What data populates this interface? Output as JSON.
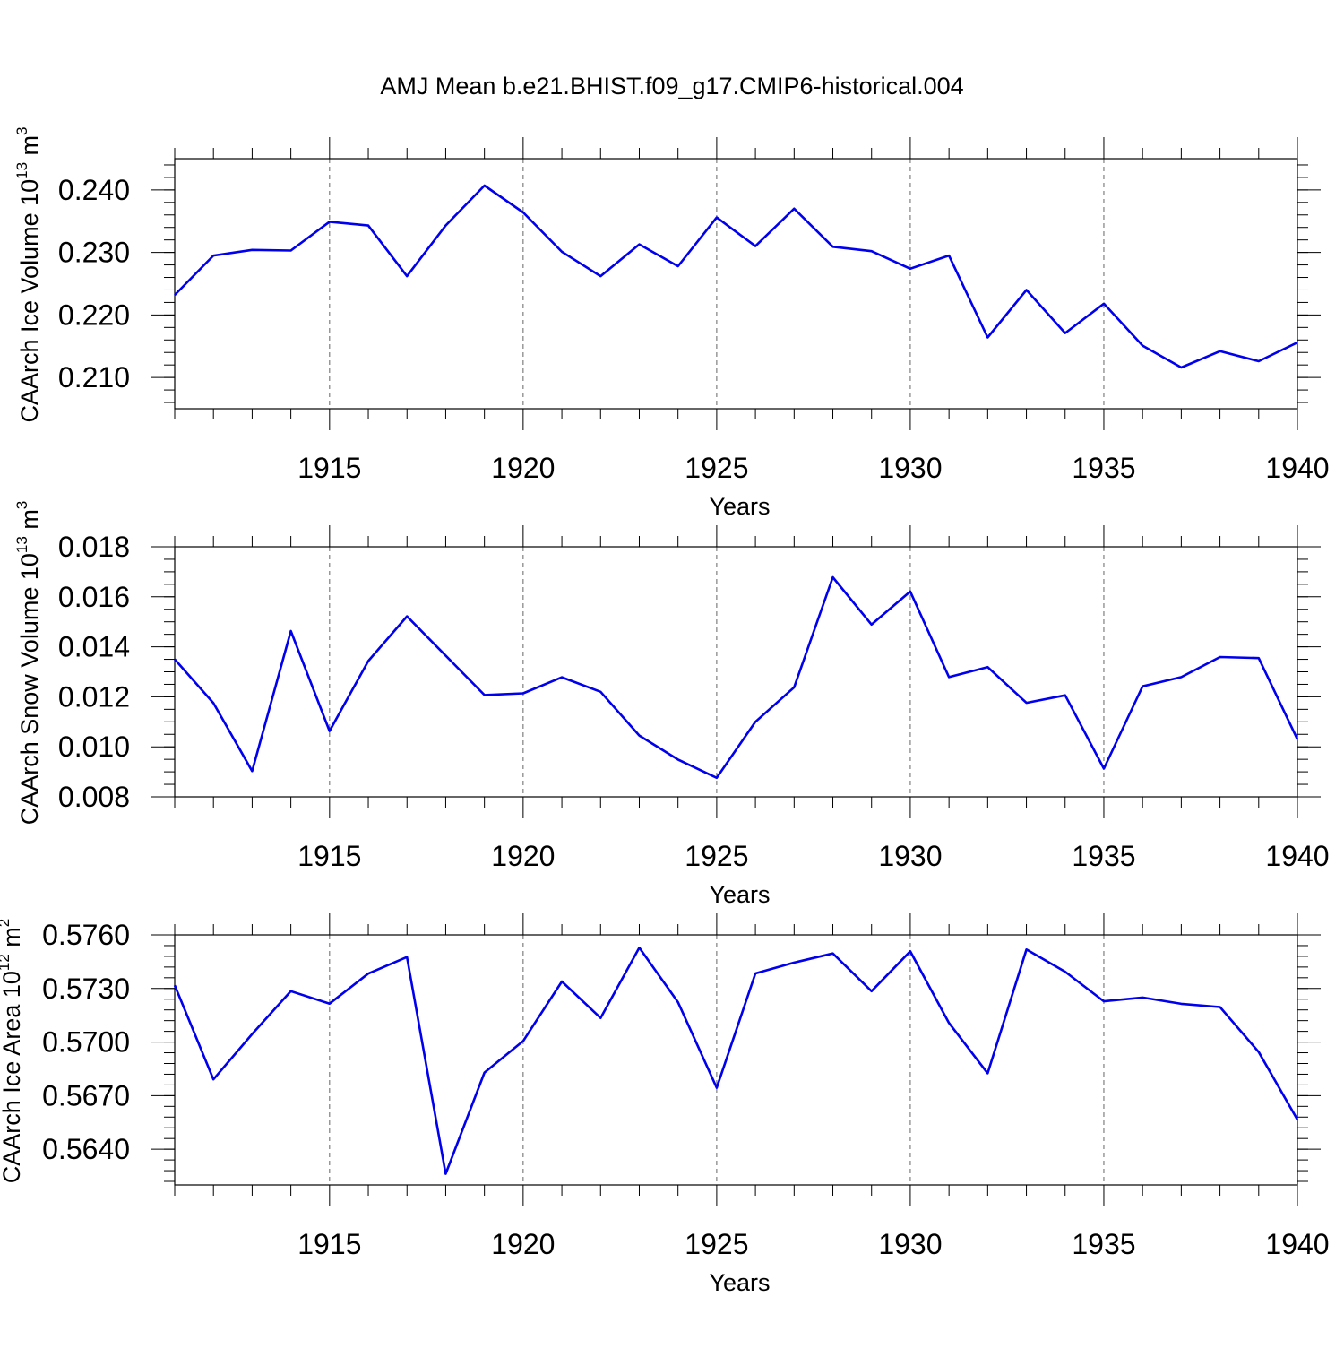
{
  "title": "AMJ Mean b.e21.BHIST.f09_g17.CMIP6-historical.004",
  "colors": {
    "line": "#0000ee",
    "axis": "#000000",
    "grid": "#666666"
  },
  "chart_data": [
    {
      "type": "line",
      "ylabel": {
        "text": "CAArch Ice Volume 10",
        "exp": "13",
        "unit": "m",
        "unit_exp": "3"
      },
      "xlabel": "Years",
      "xlim": [
        1911,
        1940
      ],
      "ylim": [
        0.205,
        0.245
      ],
      "x_ticks": [
        "1915",
        "1920",
        "1925",
        "1930",
        "1935",
        "1940"
      ],
      "x_tick_values": [
        1915,
        1920,
        1925,
        1930,
        1935,
        1940
      ],
      "y_ticks": [
        "0.210",
        "0.220",
        "0.230",
        "0.240"
      ],
      "y_tick_values": [
        0.21,
        0.22,
        0.23,
        0.24
      ],
      "y_minor_step": 0.002,
      "grid": "dashed vertical at major x ticks",
      "x": [
        1911,
        1912,
        1913,
        1914,
        1915,
        1916,
        1917,
        1918,
        1919,
        1920,
        1921,
        1922,
        1923,
        1924,
        1925,
        1926,
        1927,
        1928,
        1929,
        1930,
        1931,
        1932,
        1933,
        1934,
        1935,
        1936,
        1937,
        1938,
        1939,
        1940
      ],
      "values": [
        0.2232,
        0.2295,
        0.2304,
        0.2303,
        0.2349,
        0.2343,
        0.2262,
        0.2343,
        0.2407,
        0.2364,
        0.2301,
        0.2262,
        0.2313,
        0.2278,
        0.2356,
        0.231,
        0.237,
        0.2309,
        0.2302,
        0.2274,
        0.2295,
        0.2164,
        0.224,
        0.2171,
        0.2218,
        0.2151,
        0.2116,
        0.2142,
        0.2126,
        0.2156
      ]
    },
    {
      "type": "line",
      "ylabel": {
        "text": "CAArch Snow Volume 10",
        "exp": "13",
        "unit": "m",
        "unit_exp": "3"
      },
      "xlabel": "Years",
      "xlim": [
        1911,
        1940
      ],
      "ylim": [
        0.008,
        0.018
      ],
      "x_ticks": [
        "1915",
        "1920",
        "1925",
        "1930",
        "1935",
        "1940"
      ],
      "x_tick_values": [
        1915,
        1920,
        1925,
        1930,
        1935,
        1940
      ],
      "y_ticks": [
        "0.008",
        "0.010",
        "0.012",
        "0.014",
        "0.016",
        "0.018"
      ],
      "y_tick_values": [
        0.008,
        0.01,
        0.012,
        0.014,
        0.016,
        0.018
      ],
      "y_minor_step": 0.0005,
      "grid": "dashed vertical at major x ticks",
      "x": [
        1911,
        1912,
        1913,
        1914,
        1915,
        1916,
        1917,
        1918,
        1919,
        1920,
        1921,
        1922,
        1923,
        1924,
        1925,
        1926,
        1927,
        1928,
        1929,
        1930,
        1931,
        1932,
        1933,
        1934,
        1935,
        1936,
        1937,
        1938,
        1939,
        1940
      ],
      "values": [
        0.0135,
        0.01175,
        0.00903,
        0.01463,
        0.01063,
        0.01343,
        0.01522,
        0.01365,
        0.01207,
        0.01214,
        0.01278,
        0.0122,
        0.01045,
        0.00949,
        0.00876,
        0.011,
        0.01238,
        0.01678,
        0.01489,
        0.01621,
        0.01279,
        0.01319,
        0.01176,
        0.01206,
        0.00913,
        0.01242,
        0.01279,
        0.01359,
        0.01355,
        0.0103
      ]
    },
    {
      "type": "line",
      "ylabel": {
        "text": "CAArch Ice Area 10",
        "exp": "12",
        "unit": "m",
        "unit_exp": "2"
      },
      "xlabel": "Years",
      "xlim": [
        1911,
        1940
      ],
      "ylim": [
        0.562,
        0.576
      ],
      "x_ticks": [
        "1915",
        "1920",
        "1925",
        "1930",
        "1935",
        "1940"
      ],
      "x_tick_values": [
        1915,
        1920,
        1925,
        1930,
        1935,
        1940
      ],
      "y_ticks": [
        "0.5640",
        "0.5670",
        "0.5700",
        "0.5730",
        "0.5760"
      ],
      "y_tick_values": [
        0.564,
        0.567,
        0.57,
        0.573,
        0.576
      ],
      "y_minor_step": 0.0006,
      "grid": "dashed vertical at major x ticks",
      "x": [
        1911,
        1912,
        1913,
        1914,
        1915,
        1916,
        1917,
        1918,
        1919,
        1920,
        1921,
        1922,
        1923,
        1924,
        1925,
        1926,
        1927,
        1928,
        1929,
        1930,
        1931,
        1932,
        1933,
        1934,
        1935,
        1936,
        1937,
        1938,
        1939,
        1940
      ],
      "values": [
        0.57318,
        0.56791,
        0.57045,
        0.57285,
        0.57215,
        0.57383,
        0.57476,
        0.56262,
        0.56829,
        0.57006,
        0.57339,
        0.57135,
        0.57528,
        0.57223,
        0.56744,
        0.57384,
        0.57445,
        0.57496,
        0.57285,
        0.57508,
        0.57107,
        0.56825,
        0.57518,
        0.57394,
        0.57228,
        0.57249,
        0.57214,
        0.57196,
        0.56944,
        0.56566
      ]
    }
  ]
}
